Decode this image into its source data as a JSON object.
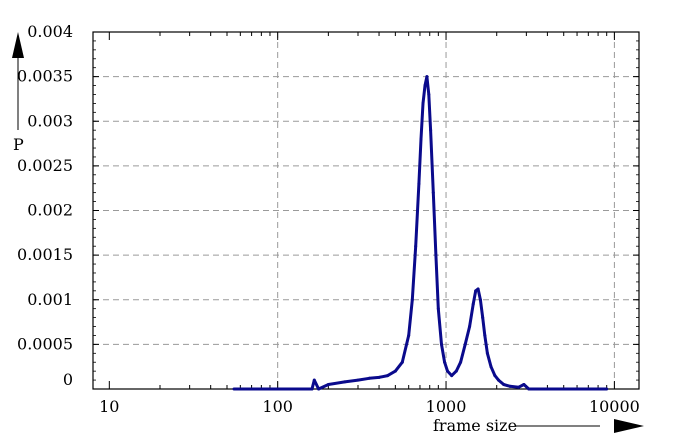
{
  "chart_data": {
    "type": "line",
    "xlabel": "frame size",
    "ylabel": "P",
    "x_scale": "log",
    "xlim": [
      8,
      14000
    ],
    "ylim": [
      0,
      0.004
    ],
    "x_ticks": [
      {
        "value": 10,
        "label": "10"
      },
      {
        "value": 100,
        "label": "100"
      },
      {
        "value": 1000,
        "label": "1000"
      },
      {
        "value": 10000,
        "label": "10000"
      }
    ],
    "y_ticks": [
      {
        "value": 0,
        "label": "0"
      },
      {
        "value": 0.0005,
        "label": "0.0005"
      },
      {
        "value": 0.001,
        "label": "0.001"
      },
      {
        "value": 0.0015,
        "label": "0.0015"
      },
      {
        "value": 0.002,
        "label": "0.002"
      },
      {
        "value": 0.0025,
        "label": "0.0025"
      },
      {
        "value": 0.003,
        "label": "0.003"
      },
      {
        "value": 0.0035,
        "label": "0.0035"
      },
      {
        "value": 0.004,
        "label": "0.004"
      }
    ],
    "grid": true,
    "series_color": "#0a0a8c",
    "grid_color": "#9a9a9a",
    "series": [
      {
        "x": [
          55,
          120,
          160,
          165,
          175,
          200,
          250,
          300,
          350,
          400,
          450,
          500,
          550,
          600,
          630,
          660,
          690,
          710,
          730,
          750,
          770,
          790,
          810,
          840,
          870,
          900,
          940,
          980,
          1020,
          1080,
          1150,
          1220,
          1300,
          1380,
          1450,
          1500,
          1550,
          1600,
          1650,
          1700,
          1760,
          1850,
          1950,
          2050,
          2200,
          2400,
          2700,
          2900,
          3100,
          3500,
          5000,
          7000,
          9000
        ],
        "y": [
          0,
          0,
          0,
          0.0001,
          0,
          5e-05,
          8e-05,
          0.0001,
          0.00012,
          0.00013,
          0.00015,
          0.0002,
          0.0003,
          0.0006,
          0.001,
          0.0016,
          0.0023,
          0.0028,
          0.0032,
          0.0034,
          0.0035,
          0.0033,
          0.0029,
          0.0022,
          0.0015,
          0.0009,
          0.0005,
          0.0003,
          0.0002,
          0.00015,
          0.0002,
          0.0003,
          0.0005,
          0.0007,
          0.00095,
          0.0011,
          0.00112,
          0.001,
          0.0008,
          0.0006,
          0.0004,
          0.00025,
          0.00015,
          0.0001,
          5e-05,
          3e-05,
          2e-05,
          5e-05,
          0,
          0,
          0,
          0,
          0
        ]
      }
    ]
  }
}
